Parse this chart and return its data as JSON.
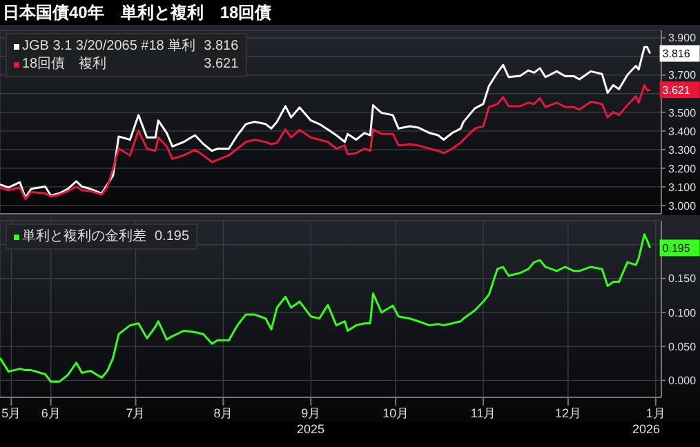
{
  "chart_data": [
    {
      "type": "line",
      "title": "日本国債40年　単利と複利　18回債",
      "legend": "top left",
      "grid": true,
      "tick_labels": "y",
      "x": [
        "2025-05-14",
        "2025-05-17",
        "2025-05-21",
        "2025-05-23",
        "2025-05-25",
        "2025-05-30",
        "2025-06-01",
        "2025-06-04",
        "2025-06-07",
        "2025-06-10",
        "2025-06-12",
        "2025-06-15",
        "2025-06-19",
        "2025-06-21",
        "2025-06-23",
        "2025-06-25",
        "2025-06-29",
        "2025-07-02",
        "2025-07-05",
        "2025-07-08",
        "2025-07-09",
        "2025-07-12",
        "2025-07-14",
        "2025-07-18",
        "2025-07-22",
        "2025-07-25",
        "2025-07-28",
        "2025-07-30",
        "2025-08-03",
        "2025-08-06",
        "2025-08-09",
        "2025-08-12",
        "2025-08-16",
        "2025-08-18",
        "2025-08-20",
        "2025-08-23",
        "2025-08-25",
        "2025-08-28",
        "2025-09-01",
        "2025-09-04",
        "2025-09-07",
        "2025-09-10",
        "2025-09-13",
        "2025-09-14",
        "2025-09-17",
        "2025-09-20",
        "2025-09-22",
        "2025-09-23",
        "2025-09-26",
        "2025-09-30",
        "2025-10-02",
        "2025-10-06",
        "2025-10-09",
        "2025-10-13",
        "2025-10-16",
        "2025-10-18",
        "2025-10-21",
        "2025-10-24",
        "2025-10-25",
        "2025-10-29",
        "2025-11-01",
        "2025-11-03",
        "2025-11-06",
        "2025-11-08",
        "2025-11-10",
        "2025-11-14",
        "2025-11-17",
        "2025-11-19",
        "2025-11-21",
        "2025-11-23",
        "2025-11-27",
        "2025-11-30",
        "2025-12-03",
        "2025-12-05",
        "2025-12-09",
        "2025-12-13",
        "2025-12-15",
        "2025-12-17",
        "2025-12-19",
        "2025-12-22",
        "2025-12-25",
        "2025-12-26",
        "2025-12-28",
        "2025-12-29",
        "2025-12-30"
      ],
      "xlim": [
        "2025-05-14",
        "2026-01-03"
      ],
      "xticks": [
        {
          "value": "2025-06-01",
          "label": null
        },
        {
          "value": "2025-07-01",
          "label": null
        },
        {
          "value": "2025-08-01",
          "label": null
        },
        {
          "value": "2025-09-01",
          "label": null
        },
        {
          "value": "2025-10-01",
          "label": null
        },
        {
          "value": "2025-11-01",
          "label": null
        },
        {
          "value": "2025-12-01",
          "label": null
        },
        {
          "value": "2026-01-01",
          "label": null
        }
      ],
      "ylim": [
        2.955,
        3.94
      ],
      "yticks": [
        {
          "value": 3.0,
          "label": "3.000"
        },
        {
          "value": 3.1,
          "label": "3.100"
        },
        {
          "value": 3.2,
          "label": "3.200"
        },
        {
          "value": 3.3,
          "label": "3.300"
        },
        {
          "value": 3.4,
          "label": "3.400"
        },
        {
          "value": 3.5,
          "label": "3.500"
        },
        {
          "value": 3.6,
          "label": null
        },
        {
          "value": 3.7,
          "label": "3.700"
        },
        {
          "value": 3.8,
          "label": null
        },
        {
          "value": 3.9,
          "label": "3.900"
        }
      ],
      "series": [
        {
          "name": "JGB 3.1 3/20/2065 #18 単利",
          "color": "#ffffff",
          "values": [
            3.113,
            3.096,
            3.125,
            3.041,
            3.089,
            3.101,
            3.053,
            3.065,
            3.089,
            3.13,
            3.101,
            3.089,
            3.065,
            3.113,
            3.161,
            3.37,
            3.353,
            3.485,
            3.365,
            3.365,
            3.456,
            3.389,
            3.317,
            3.341,
            3.377,
            3.329,
            3.293,
            3.305,
            3.305,
            3.377,
            3.437,
            3.449,
            3.437,
            3.413,
            3.449,
            3.533,
            3.473,
            3.526,
            3.456,
            3.437,
            3.408,
            3.377,
            3.341,
            3.384,
            3.353,
            3.389,
            3.377,
            3.538,
            3.497,
            3.485,
            3.413,
            3.425,
            3.418,
            3.389,
            3.377,
            3.353,
            3.389,
            3.413,
            3.449,
            3.521,
            3.545,
            3.641,
            3.713,
            3.754,
            3.689,
            3.696,
            3.725,
            3.713,
            3.737,
            3.689,
            3.72,
            3.694,
            3.694,
            3.677,
            3.72,
            3.706,
            3.605,
            3.646,
            3.624,
            3.701,
            3.749,
            3.73,
            3.85,
            3.85,
            3.816
          ],
          "value_labels": [
            null,
            null,
            null,
            null,
            null,
            null,
            null,
            null,
            null,
            null,
            null,
            null,
            null,
            null,
            null,
            null,
            null,
            null,
            null,
            null,
            null,
            null,
            null,
            null,
            null,
            null,
            null,
            null,
            null,
            null,
            null,
            null,
            null,
            null,
            null,
            null,
            null,
            null,
            null,
            null,
            null,
            null,
            null,
            null,
            null,
            null,
            null,
            null,
            null,
            null,
            null,
            null,
            null,
            null,
            null,
            null,
            null,
            null,
            null,
            null,
            null,
            null,
            null,
            null,
            null,
            null,
            null,
            null,
            null,
            null,
            null,
            null,
            null,
            null,
            null,
            null,
            null,
            null,
            null,
            null,
            null,
            null,
            null,
            null,
            "3.816"
          ]
        },
        {
          "name": "18回債　複利",
          "color": "#e8173a",
          "values": [
            3.096,
            3.082,
            3.096,
            3.034,
            3.072,
            3.065,
            3.048,
            3.058,
            3.077,
            3.101,
            3.082,
            3.077,
            3.058,
            3.101,
            3.197,
            3.305,
            3.269,
            3.401,
            3.305,
            3.293,
            3.365,
            3.317,
            3.25,
            3.269,
            3.298,
            3.269,
            3.233,
            3.245,
            3.269,
            3.305,
            3.341,
            3.353,
            3.341,
            3.329,
            3.336,
            3.408,
            3.365,
            3.406,
            3.365,
            3.353,
            3.341,
            3.305,
            3.322,
            3.274,
            3.281,
            3.305,
            3.293,
            3.408,
            3.384,
            3.384,
            3.322,
            3.329,
            3.322,
            3.305,
            3.293,
            3.281,
            3.305,
            3.336,
            3.353,
            3.413,
            3.425,
            3.528,
            3.545,
            3.581,
            3.533,
            3.533,
            3.552,
            3.545,
            3.576,
            3.528,
            3.552,
            3.528,
            3.528,
            3.514,
            3.557,
            3.545,
            3.473,
            3.502,
            3.485,
            3.538,
            3.586,
            3.552,
            3.646,
            3.617,
            3.621
          ],
          "value_labels": [
            null,
            null,
            null,
            null,
            null,
            null,
            null,
            null,
            null,
            null,
            null,
            null,
            null,
            null,
            null,
            null,
            null,
            null,
            null,
            null,
            null,
            null,
            null,
            null,
            null,
            null,
            null,
            null,
            null,
            null,
            null,
            null,
            null,
            null,
            null,
            null,
            null,
            null,
            null,
            null,
            null,
            null,
            null,
            null,
            null,
            null,
            null,
            null,
            null,
            null,
            null,
            null,
            null,
            null,
            null,
            null,
            null,
            null,
            null,
            null,
            null,
            null,
            null,
            null,
            null,
            null,
            null,
            null,
            null,
            null,
            null,
            null,
            null,
            null,
            null,
            null,
            null,
            null,
            null,
            null,
            null,
            null,
            null,
            null,
            "3.621"
          ]
        }
      ]
    },
    {
      "type": "line",
      "legend": "top left",
      "grid": true,
      "annotations": [
        "2025",
        "2026"
      ],
      "x": [
        "2025-05-14",
        "2025-05-17",
        "2025-05-21",
        "2025-05-23",
        "2025-05-25",
        "2025-05-30",
        "2025-06-01",
        "2025-06-04",
        "2025-06-07",
        "2025-06-10",
        "2025-06-12",
        "2025-06-15",
        "2025-06-19",
        "2025-06-21",
        "2025-06-23",
        "2025-06-25",
        "2025-06-29",
        "2025-07-02",
        "2025-07-05",
        "2025-07-08",
        "2025-07-09",
        "2025-07-12",
        "2025-07-14",
        "2025-07-18",
        "2025-07-22",
        "2025-07-25",
        "2025-07-28",
        "2025-07-30",
        "2025-08-03",
        "2025-08-06",
        "2025-08-09",
        "2025-08-12",
        "2025-08-16",
        "2025-08-18",
        "2025-08-20",
        "2025-08-23",
        "2025-08-25",
        "2025-08-28",
        "2025-09-01",
        "2025-09-04",
        "2025-09-07",
        "2025-09-10",
        "2025-09-13",
        "2025-09-14",
        "2025-09-17",
        "2025-09-20",
        "2025-09-22",
        "2025-09-23",
        "2025-09-26",
        "2025-09-30",
        "2025-10-02",
        "2025-10-06",
        "2025-10-09",
        "2025-10-13",
        "2025-10-16",
        "2025-10-18",
        "2025-10-21",
        "2025-10-24",
        "2025-10-25",
        "2025-10-29",
        "2025-11-01",
        "2025-11-03",
        "2025-11-06",
        "2025-11-08",
        "2025-11-10",
        "2025-11-14",
        "2025-11-17",
        "2025-11-19",
        "2025-11-21",
        "2025-11-23",
        "2025-11-27",
        "2025-11-30",
        "2025-12-03",
        "2025-12-05",
        "2025-12-09",
        "2025-12-13",
        "2025-12-15",
        "2025-12-17",
        "2025-12-19",
        "2025-12-22",
        "2025-12-25",
        "2025-12-26",
        "2025-12-28",
        "2025-12-29",
        "2025-12-30"
      ],
      "xlim": [
        "2025-05-14",
        "2026-01-03"
      ],
      "xticks": [
        {
          "value": "2025-05-18",
          "label": "5月"
        },
        {
          "value": "2025-06-01",
          "label": "6月"
        },
        {
          "value": "2025-07-01",
          "label": "7月"
        },
        {
          "value": "2025-08-01",
          "label": "8月"
        },
        {
          "value": "2025-09-01",
          "label": "9月"
        },
        {
          "value": "2025-10-01",
          "label": "10月"
        },
        {
          "value": "2025-11-01",
          "label": "11月"
        },
        {
          "value": "2025-12-01",
          "label": "12月"
        },
        {
          "value": "2026-01-01",
          "label": "1月"
        }
      ],
      "ylim": [
        -0.025,
        0.235
      ],
      "yticks": [
        {
          "value": 0,
          "label": "0.000"
        },
        {
          "value": 0.05,
          "label": "0.050"
        },
        {
          "value": 0.1,
          "label": "0.100"
        },
        {
          "value": 0.15,
          "label": "0.150"
        },
        {
          "value": 0.2,
          "label": null
        }
      ],
      "series": [
        {
          "name": "単利と複利の金利差",
          "color": "#33ff1a",
          "values": [
            0.033,
            0.013,
            0.017,
            0.015,
            0.015,
            0.009,
            -0.002,
            -0.002,
            0.008,
            0.026,
            0.011,
            0.014,
            0.004,
            0.014,
            0.033,
            0.068,
            0.081,
            0.084,
            0.062,
            0.079,
            0.087,
            0.06,
            0.065,
            0.073,
            0.071,
            0.068,
            0.054,
            0.059,
            0.059,
            0.081,
            0.097,
            0.097,
            0.091,
            0.075,
            0.107,
            0.123,
            0.107,
            0.116,
            0.094,
            0.091,
            0.111,
            0.081,
            0.087,
            0.073,
            0.081,
            0.084,
            0.084,
            0.128,
            0.1,
            0.11,
            0.094,
            0.091,
            0.087,
            0.081,
            0.083,
            0.081,
            0.084,
            0.087,
            0.091,
            0.103,
            0.116,
            0.126,
            0.164,
            0.167,
            0.154,
            0.158,
            0.164,
            0.174,
            0.177,
            0.167,
            0.161,
            0.167,
            0.161,
            0.161,
            0.167,
            0.164,
            0.139,
            0.145,
            0.145,
            0.174,
            0.17,
            0.18,
            0.215,
            0.206,
            0.195
          ],
          "value_labels": [
            null,
            null,
            null,
            null,
            null,
            null,
            null,
            null,
            null,
            null,
            null,
            null,
            null,
            null,
            null,
            null,
            null,
            null,
            null,
            null,
            null,
            null,
            null,
            null,
            null,
            null,
            null,
            null,
            null,
            null,
            null,
            null,
            null,
            null,
            null,
            null,
            null,
            null,
            null,
            null,
            null,
            null,
            null,
            null,
            null,
            null,
            null,
            null,
            null,
            null,
            null,
            null,
            null,
            null,
            null,
            null,
            null,
            null,
            null,
            null,
            null,
            null,
            null,
            null,
            null,
            null,
            null,
            null,
            null,
            null,
            null,
            null,
            null,
            null,
            null,
            null,
            null,
            null,
            null,
            null,
            null,
            null,
            null,
            null,
            "0.195"
          ]
        }
      ]
    }
  ]
}
